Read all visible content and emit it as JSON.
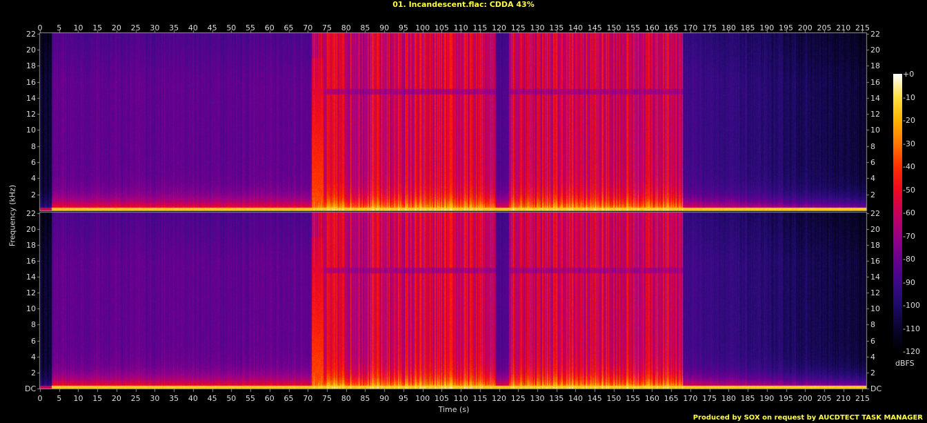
{
  "title": "01. Incandescent.flac: CDDA 43%",
  "footer": "Produced by SOX on request by AUCDTECT TASK MANAGER",
  "chart_data": {
    "type": "heatmap",
    "xlabel": "Time (s)",
    "ylabel": "Frequency (kHz)",
    "xlim": [
      0,
      216
    ],
    "ylim": [
      0,
      22.05
    ],
    "x_ticks": [
      0,
      5,
      10,
      15,
      20,
      25,
      30,
      35,
      40,
      45,
      50,
      55,
      60,
      65,
      70,
      75,
      80,
      85,
      90,
      95,
      100,
      105,
      110,
      115,
      120,
      125,
      130,
      135,
      140,
      145,
      150,
      155,
      160,
      165,
      170,
      175,
      180,
      185,
      190,
      195,
      200,
      205,
      210,
      215
    ],
    "channels": [
      {
        "y_ticks": [
          "22",
          "20",
          "18",
          "16",
          "14",
          "12",
          "10",
          "8",
          "6",
          "4",
          "2"
        ]
      },
      {
        "y_ticks": [
          "22",
          "20",
          "18",
          "16",
          "14",
          "12",
          "10",
          "8",
          "6",
          "4",
          "2",
          "DC"
        ]
      }
    ],
    "colorbar": {
      "unit": "dBFS",
      "range": [
        -120,
        0
      ],
      "ticks": [
        "+0",
        "-10",
        "-20",
        "-30",
        "-40",
        "-50",
        "-60",
        "-70",
        "-80",
        "-90",
        "-100",
        "-110",
        "-120"
      ],
      "colors": [
        "#000000",
        "#0a0530",
        "#1e0a68",
        "#3e0a8a",
        "#6a0090",
        "#9a0088",
        "#c8005a",
        "#ee0a22",
        "#ff3000",
        "#ff7800",
        "#ffb400",
        "#ffe040",
        "#ffffff"
      ]
    },
    "segments": [
      {
        "from": 0,
        "to": 3,
        "level": "quiet",
        "hf_db": -110
      },
      {
        "from": 3,
        "to": 71,
        "level": "moderate",
        "hf_db": -82
      },
      {
        "from": 71,
        "to": 119,
        "level": "loud",
        "hf_db": -55
      },
      {
        "from": 119,
        "to": 122.5,
        "level": "moderate",
        "hf_db": -85
      },
      {
        "from": 122.5,
        "to": 168,
        "level": "loud",
        "hf_db": -55
      },
      {
        "from": 168,
        "to": 216,
        "level": "fading",
        "hf_db": -95
      }
    ]
  }
}
